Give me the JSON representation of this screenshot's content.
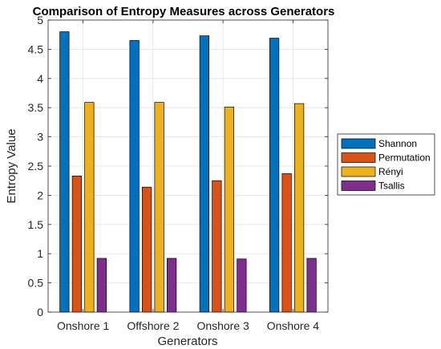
{
  "chart_data": {
    "type": "bar",
    "title": "Comparison of Entropy Measures across Generators",
    "xlabel": "Generators",
    "ylabel": "Entropy Value",
    "categories": [
      "Onshore 1",
      "Offshore 2",
      "Onshore 3",
      "Onshore 4"
    ],
    "ylim": [
      0,
      5
    ],
    "yticks": [
      0,
      0.5,
      1,
      1.5,
      2,
      2.5,
      3,
      3.5,
      4,
      4.5,
      5
    ],
    "ytick_labels": [
      "0",
      "0.5",
      "1",
      "1.5",
      "2",
      "2.5",
      "3",
      "3.5",
      "4",
      "4.5",
      "5"
    ],
    "grid": true,
    "legend_placement": "outside-right",
    "series": [
      {
        "name": "Shannon",
        "color": "#0072BD",
        "values": [
          4.8,
          4.65,
          4.73,
          4.69
        ]
      },
      {
        "name": "Permutation",
        "color": "#D95319",
        "values": [
          2.33,
          2.14,
          2.25,
          2.37
        ]
      },
      {
        "name": "Rényi",
        "color": "#EDB120",
        "values": [
          3.59,
          3.59,
          3.51,
          3.57
        ]
      },
      {
        "name": "Tsallis",
        "color": "#7E2F8E",
        "values": [
          0.92,
          0.92,
          0.91,
          0.92
        ]
      }
    ]
  }
}
